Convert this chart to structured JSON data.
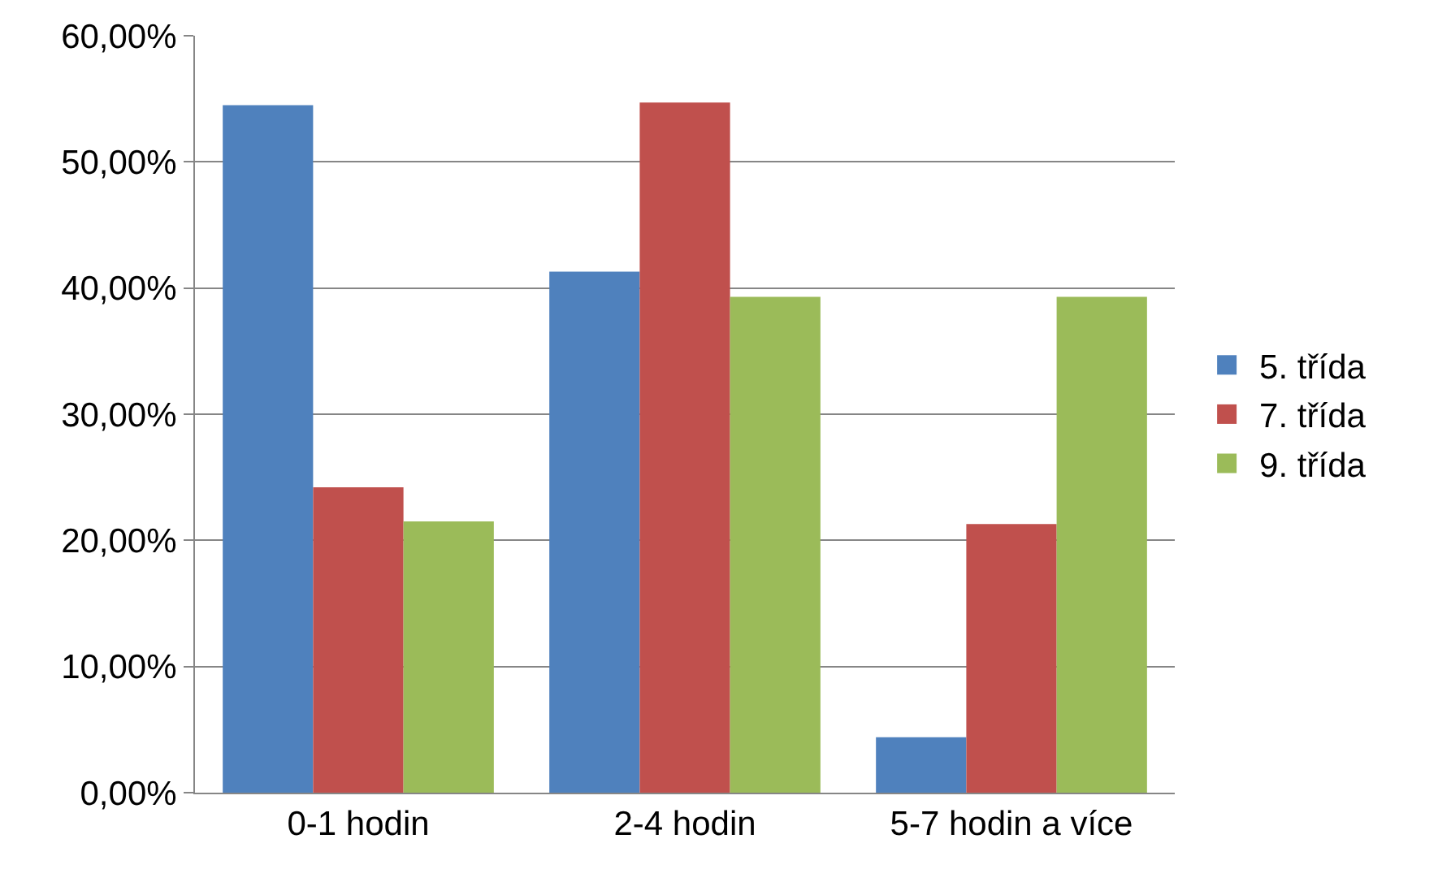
{
  "chart_data": {
    "type": "bar",
    "categories": [
      "0-1 hodin",
      "2-4 hodin",
      "5-7 hodin a více"
    ],
    "series": [
      {
        "name": "5. třída",
        "color": "#4f81bd",
        "values": [
          54.5,
          41.3,
          4.4
        ]
      },
      {
        "name": "7. třída",
        "color": "#c0504d",
        "values": [
          24.2,
          54.7,
          21.3
        ]
      },
      {
        "name": "9. třída",
        "color": "#9bbb59",
        "values": [
          21.5,
          39.3,
          39.3
        ]
      }
    ],
    "ylim": [
      0,
      60
    ],
    "yticks": [
      {
        "value": 0,
        "label": "0,00%"
      },
      {
        "value": 10,
        "label": "10,00%"
      },
      {
        "value": 20,
        "label": "20,00%"
      },
      {
        "value": 30,
        "label": "30,00%"
      },
      {
        "value": 40,
        "label": "40,00%"
      },
      {
        "value": 50,
        "label": "50,00%"
      },
      {
        "value": 60,
        "label": "60,00%"
      }
    ],
    "grid": "y",
    "legend": "right"
  }
}
